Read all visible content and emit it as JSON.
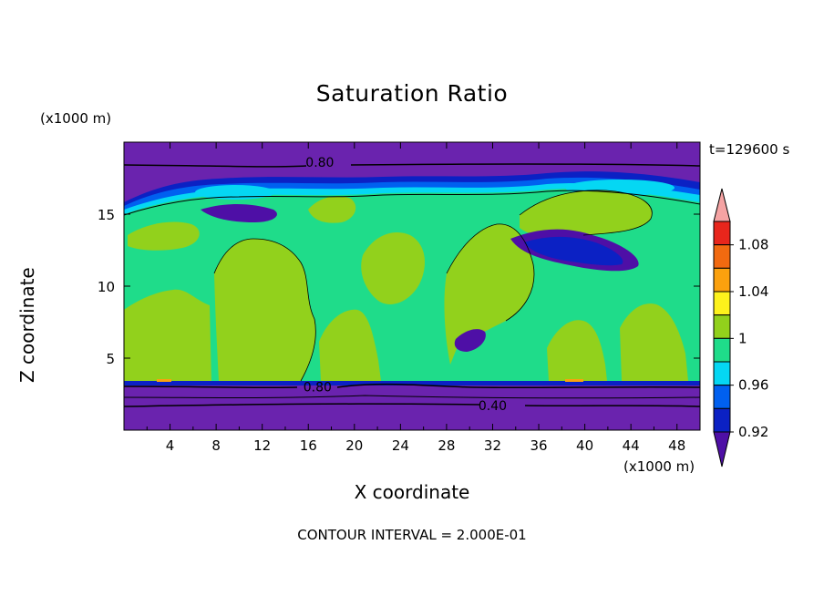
{
  "chart_data": {
    "type": "heatmap",
    "title": "Saturation Ratio",
    "xlabel": "X coordinate",
    "ylabel": "Z coordinate",
    "x_unit": "(x1000 m)",
    "y_unit": "(x1000 m)",
    "time_label": "t=129600 s",
    "footer": "CONTOUR INTERVAL = 2.000E-01",
    "xlim": [
      0,
      50
    ],
    "ylim": [
      0,
      20
    ],
    "x_ticks": [
      "4",
      "8",
      "12",
      "16",
      "20",
      "24",
      "28",
      "32",
      "36",
      "40",
      "44",
      "48"
    ],
    "y_ticks": [
      "5",
      "10",
      "15"
    ],
    "contour_labels": [
      {
        "text": "0.80",
        "x": 17.0,
        "z": 18.6
      },
      {
        "text": "0.80",
        "x": 16.8,
        "z": 3.0
      },
      {
        "text": "0.40",
        "x": 32.0,
        "z": 1.7
      }
    ],
    "colorbar": {
      "labels": [
        "1.08",
        "1.04",
        "1",
        "0.96",
        "0.92"
      ],
      "colors": [
        "#f5a3a3",
        "#e8261c",
        "#f26a10",
        "#fba10e",
        "#fdf21c",
        "#92d11c",
        "#1fdc8a",
        "#05d7f3",
        "#0060f0",
        "#0b21c4",
        "#4e0fa6"
      ]
    },
    "layers": [
      {
        "level": "below 0.92",
        "color": "#6a23ae"
      },
      {
        "level": "0.92-0.94",
        "color": "#0b21c4"
      },
      {
        "level": "0.94-0.96",
        "color": "#0060f0"
      },
      {
        "level": "0.96-0.98",
        "color": "#05d7f3"
      },
      {
        "level": "0.98-1.00",
        "color": "#1fdc8a"
      },
      {
        "level": "1.00-1.02",
        "color": "#92d11c"
      },
      {
        "level": "1.04-1.06",
        "color": "#fba10e"
      }
    ]
  }
}
